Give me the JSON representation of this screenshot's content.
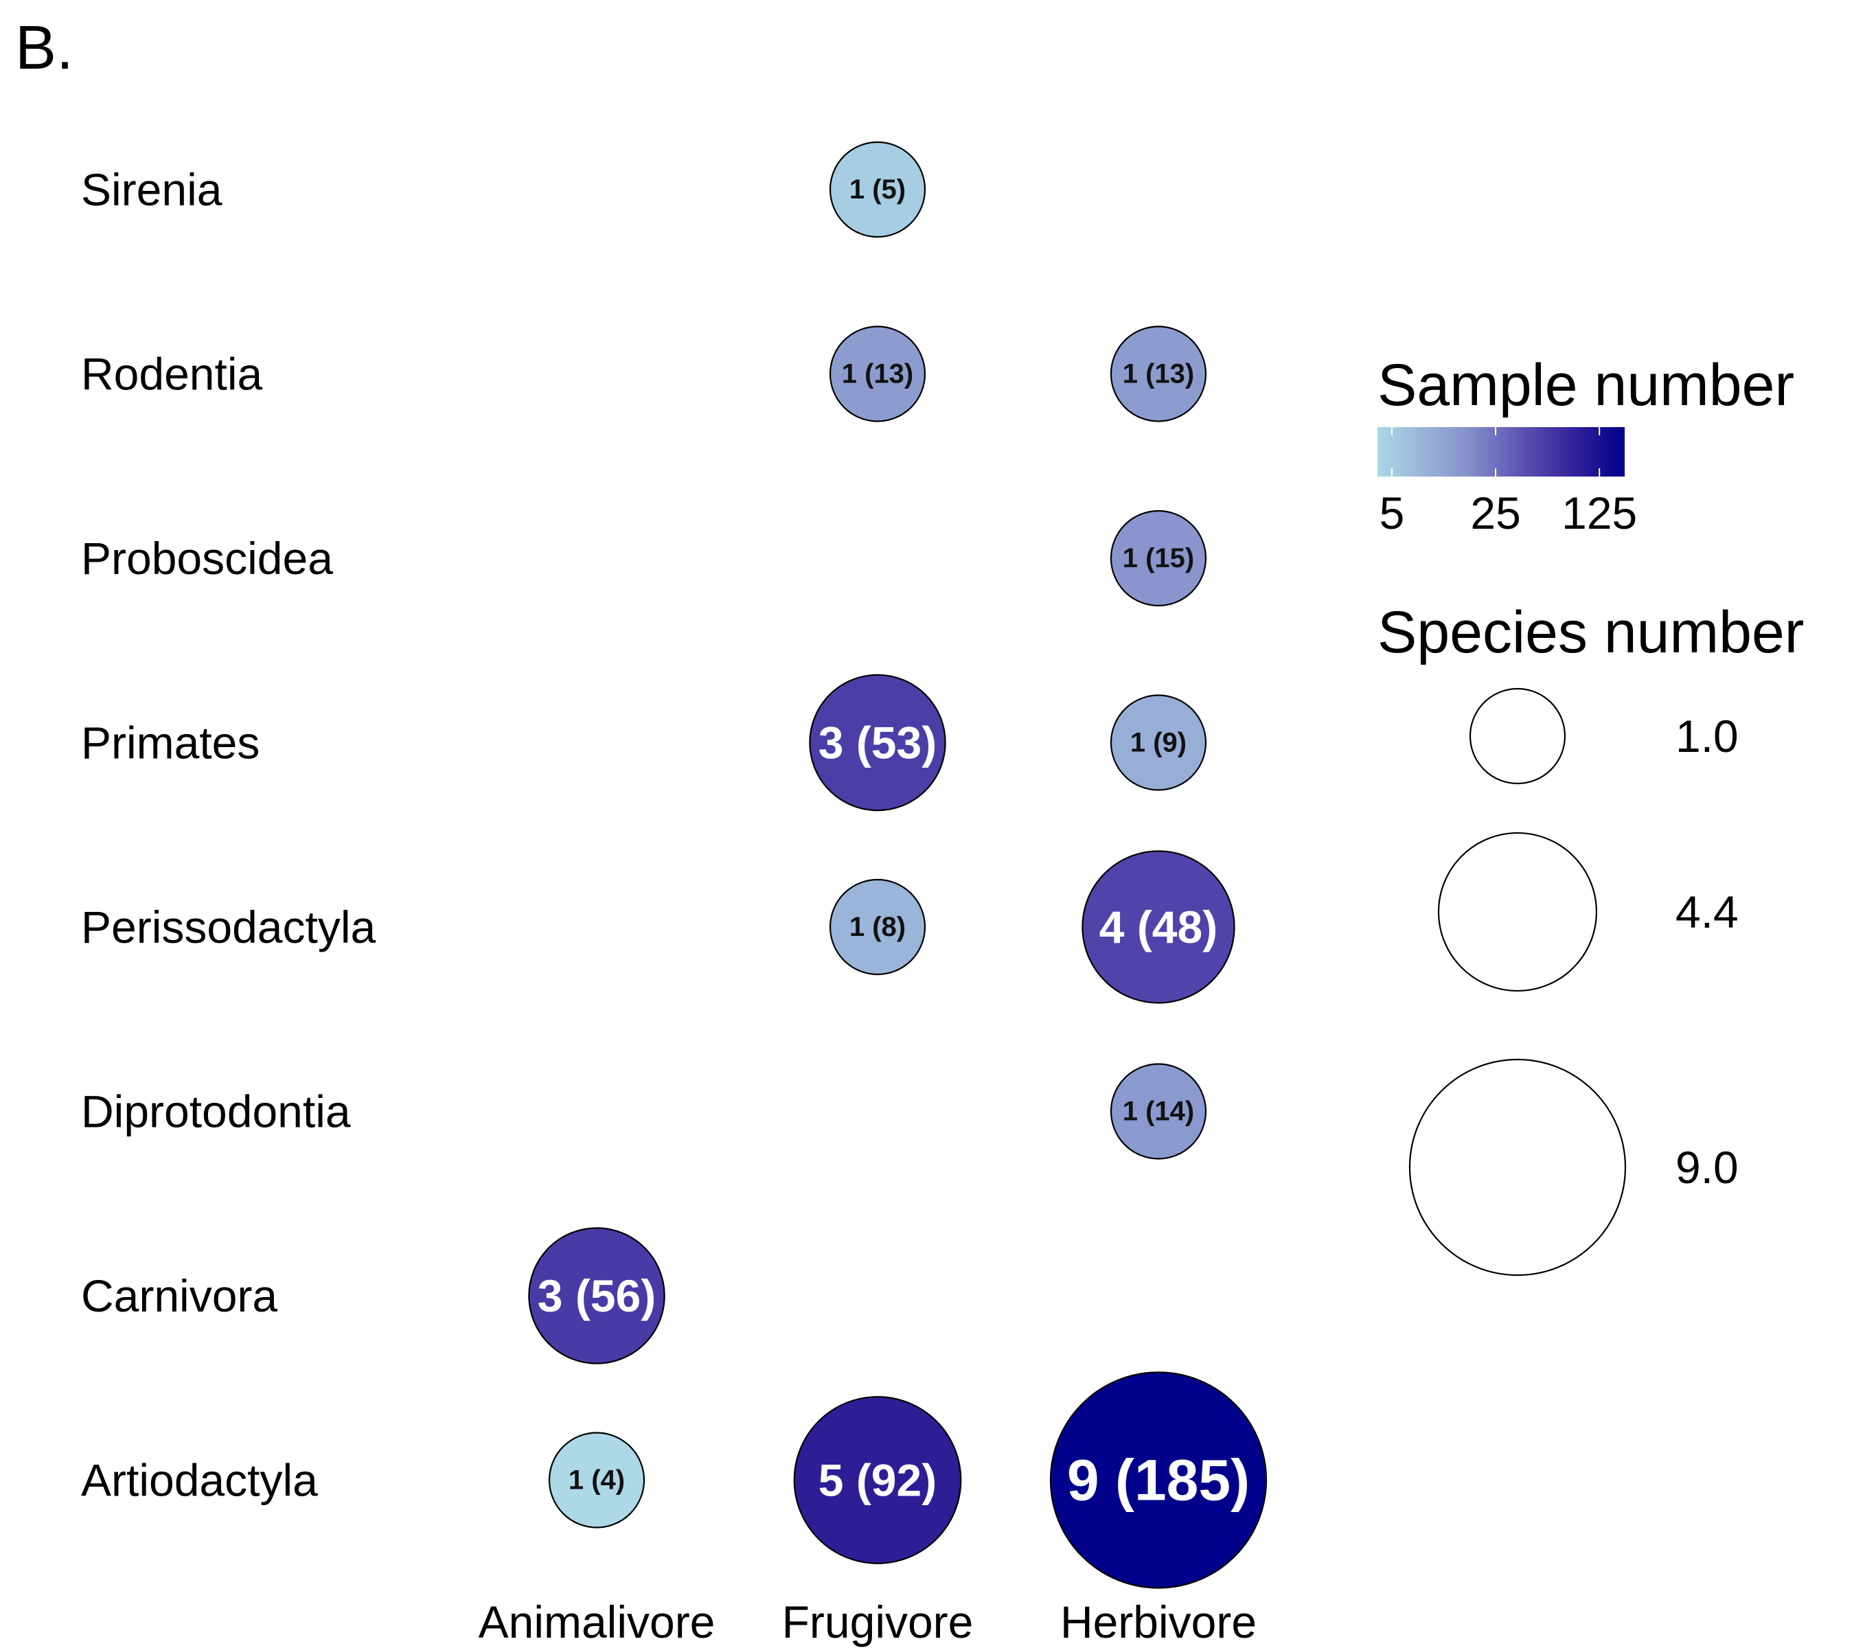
{
  "chart_data": {
    "type": "bubble",
    "panel_label": "B.",
    "rows": [
      "Sirenia",
      "Rodentia",
      "Proboscidea",
      "Primates",
      "Perissodactyla",
      "Diprotodontia",
      "Carnivora",
      "Artiodactyla"
    ],
    "columns": [
      "Animalivore",
      "Frugivore",
      "Herbivore"
    ],
    "points": [
      {
        "row": "Sirenia",
        "column": "Frugivore",
        "species": 1,
        "samples": 5,
        "label": "1 (5)"
      },
      {
        "row": "Rodentia",
        "column": "Frugivore",
        "species": 1,
        "samples": 13,
        "label": "1 (13)"
      },
      {
        "row": "Rodentia",
        "column": "Herbivore",
        "species": 1,
        "samples": 13,
        "label": "1 (13)"
      },
      {
        "row": "Proboscidea",
        "column": "Herbivore",
        "species": 1,
        "samples": 15,
        "label": "1 (15)"
      },
      {
        "row": "Primates",
        "column": "Frugivore",
        "species": 3,
        "samples": 53,
        "label": "3 (53)"
      },
      {
        "row": "Primates",
        "column": "Herbivore",
        "species": 1,
        "samples": 9,
        "label": "1 (9)"
      },
      {
        "row": "Perissodactyla",
        "column": "Frugivore",
        "species": 1,
        "samples": 8,
        "label": "1 (8)"
      },
      {
        "row": "Perissodactyla",
        "column": "Herbivore",
        "species": 4,
        "samples": 48,
        "label": "4 (48)"
      },
      {
        "row": "Diprotodontia",
        "column": "Herbivore",
        "species": 1,
        "samples": 14,
        "label": "1 (14)"
      },
      {
        "row": "Carnivora",
        "column": "Animalivore",
        "species": 3,
        "samples": 56,
        "label": "3 (56)"
      },
      {
        "row": "Artiodactyla",
        "column": "Animalivore",
        "species": 1,
        "samples": 4,
        "label": "1 (4)"
      },
      {
        "row": "Artiodactyla",
        "column": "Frugivore",
        "species": 5,
        "samples": 92,
        "label": "5 (92)"
      },
      {
        "row": "Artiodactyla",
        "column": "Herbivore",
        "species": 9,
        "samples": 185,
        "label": "9 (185)"
      }
    ],
    "color_legend": {
      "title": "Sample number",
      "scale": "log",
      "ticks": [
        5,
        25,
        125
      ],
      "tick_labels": [
        "5",
        "25",
        "125"
      ],
      "range": [
        4,
        185
      ],
      "colors": [
        "#add8e6",
        "#8894cc",
        "#5a4fb0",
        "#2d1e96",
        "#00008b"
      ]
    },
    "size_legend": {
      "title": "Species number",
      "values": [
        1,
        4.4,
        9
      ],
      "labels": [
        "1.0",
        "4.4",
        "9.0"
      ]
    }
  }
}
